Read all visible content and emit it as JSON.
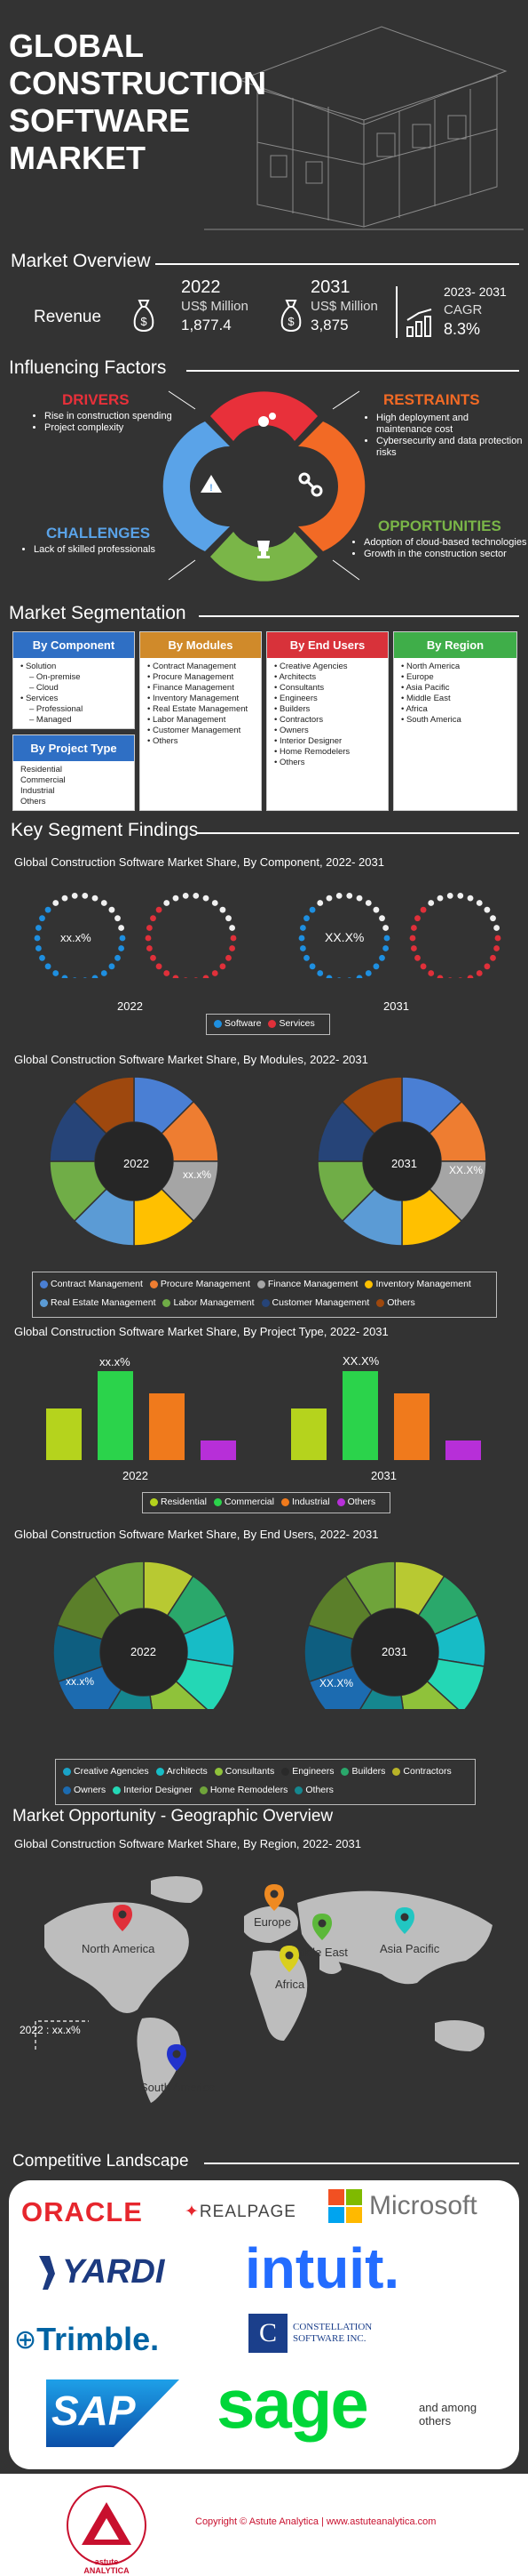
{
  "header": {
    "title_lines": [
      "GLOBAL",
      "CONSTRUCTION",
      "SOFTWARE",
      "MARKET"
    ]
  },
  "overview": {
    "heading": "Market Overview",
    "revenue_label": "Revenue",
    "y2022": {
      "year": "2022",
      "unit": "US$ Million",
      "value": "1,877.4"
    },
    "y2031": {
      "year": "2031",
      "unit": "US$ Million",
      "value": "3,875"
    },
    "cagr": {
      "period": "2023- 2031",
      "label": "CAGR",
      "value": "8.3%"
    }
  },
  "factors": {
    "heading": "Influencing Factors",
    "drivers": {
      "title": "DRIVERS",
      "items": [
        "Rise in construction spending",
        "Project complexity"
      ],
      "color": "#e8303a"
    },
    "restraints": {
      "title": "RESTRAINTS",
      "items": [
        "High deployment and maintenance cost",
        "Cybersecurity and data protection risks"
      ],
      "color": "#f26a25"
    },
    "challenges": {
      "title": "CHALLENGES",
      "items": [
        "Lack of skilled professionals"
      ],
      "color": "#5aa3e8"
    },
    "opportunities": {
      "title": "OPPORTUNITIES",
      "items": [
        "Adoption of cloud-based technologies",
        "Growth in the construction sector"
      ],
      "color": "#7ab648"
    }
  },
  "segmentation": {
    "heading": "Market Segmentation",
    "component": {
      "title": "By Component",
      "color": "#2f6fc4",
      "items": [
        {
          "text": "Solution",
          "level": 0
        },
        {
          "text": "On-premise",
          "level": 1
        },
        {
          "text": "Cloud",
          "level": 1
        },
        {
          "text": "Services",
          "level": 0
        },
        {
          "text": "Professional",
          "level": 1
        },
        {
          "text": "Managed",
          "level": 1
        }
      ]
    },
    "project_type": {
      "title": "By Project Type",
      "color": "#2f6fc4",
      "items": [
        "Residential",
        "Commercial",
        "Industrial",
        "Others"
      ]
    },
    "modules": {
      "title": "By Modules",
      "color": "#d08a2a",
      "items": [
        "Contract Management",
        "Procure Management",
        "Finance Management",
        "Inventory Management",
        "Real Estate Management",
        "Labor Management",
        "Customer Management",
        "Others"
      ]
    },
    "end_users": {
      "title": "By End Users",
      "color": "#d8323a",
      "items": [
        "Creative Agencies",
        "Architects",
        "Consultants",
        "Engineers",
        "Builders",
        "Contractors",
        "Owners",
        "Interior Designer",
        "Home Remodelers",
        "Others"
      ]
    },
    "region": {
      "title": "By Region",
      "color": "#3fae49",
      "items": [
        "North America",
        "Europe",
        "Asia Pacific",
        "Middle East",
        "Africa",
        "South America"
      ]
    }
  },
  "findings": {
    "heading": "Key Segment Findings",
    "component_chart": {
      "title": "Global Construction Software Market Share, By Component, 2022- 2031",
      "label_2022": "xx.x%",
      "label_2031": "XX.X%",
      "year_a": "2022",
      "year_b": "2031",
      "legend": [
        {
          "name": "Software",
          "color": "#1e8fe0"
        },
        {
          "name": "Services",
          "color": "#e0303a"
        }
      ]
    },
    "modules_chart": {
      "title": "Global Construction Software Market Share, By Modules,  2022- 2031",
      "label_2022": "xx.x%",
      "label_2031": "XX.X%",
      "year_a": "2022",
      "year_b": "2031",
      "legend": [
        {
          "name": "Contract Management",
          "color": "#4a7fd4"
        },
        {
          "name": "Procure Management",
          "color": "#ee7d31"
        },
        {
          "name": "Finance Management",
          "color": "#a5a5a5"
        },
        {
          "name": "Inventory Management",
          "color": "#ffc000"
        },
        {
          "name": "Real Estate Management",
          "color": "#5b9bd5"
        },
        {
          "name": "Labor Management",
          "color": "#70ad47"
        },
        {
          "name": "Customer Management",
          "color": "#264478"
        },
        {
          "name": "Others",
          "color": "#9e480e"
        }
      ]
    },
    "project_chart": {
      "title": "Global Construction Software Market Share, By Project Type, 2022- 2031",
      "label_2022": "xx.x%",
      "label_2031": "XX.X%",
      "year_a": "2022",
      "year_b": "2031",
      "legend": [
        {
          "name": "Residential",
          "color": "#b5d31d"
        },
        {
          "name": "Commercial",
          "color": "#2bd34b"
        },
        {
          "name": "Industrial",
          "color": "#f07a1c"
        },
        {
          "name": "Others",
          "color": "#b72fd8"
        }
      ]
    },
    "enduser_chart": {
      "title": "Global Construction Software Market Share, By End Users, 2022- 2031",
      "label_2022": "xx.x%",
      "label_2031": "XX.X%",
      "year_a": "2022",
      "year_b": "2031",
      "legend": [
        {
          "name": "Creative Agencies",
          "color": "#1aa3c8"
        },
        {
          "name": "Architects",
          "color": "#17bcc6"
        },
        {
          "name": "Consultants",
          "color": "#8fc23a"
        },
        {
          "name": "Engineers",
          "color": "#2a2a2a"
        },
        {
          "name": "Builders",
          "color": "#2aa86b"
        },
        {
          "name": "Contractors",
          "color": "#b8b328"
        },
        {
          "name": "Owners",
          "color": "#1c6bb0"
        },
        {
          "name": "Interior Designer",
          "color": "#24d7b5"
        },
        {
          "name": "Home Remodelers",
          "color": "#6fa43a"
        },
        {
          "name": "Others",
          "color": "#15878f"
        }
      ]
    }
  },
  "geo": {
    "heading": "Market Opportunity - Geographic Overview",
    "title": "Global Construction Software Market Share, By Region, 2022- 2031",
    "note": "2022 :  xx.x%",
    "regions": [
      {
        "name": "North America",
        "color": "#e0303a"
      },
      {
        "name": "Europe",
        "color": "#ee8a22"
      },
      {
        "name": "Middle East",
        "color": "#5cb83a"
      },
      {
        "name": "Asia Pacific",
        "color": "#22c6c2"
      },
      {
        "name": "Africa",
        "color": "#d9cf1e"
      },
      {
        "name": "South America",
        "color": "#2233cc"
      }
    ]
  },
  "landscape": {
    "heading": "Competitive Landscape",
    "logos": {
      "oracle": "ORACLE",
      "realpage": "REALPAGE",
      "microsoft": "Microsoft",
      "yardi": "YARDI",
      "intuit": "intuit.",
      "trimble": "Trimble.",
      "constellation": "CONSTELLATION SOFTWARE INC.",
      "sap": "SAP",
      "sage": "sage"
    },
    "others": "and among others"
  },
  "footer": {
    "brand": "astute ANALYTICA",
    "copyright": "Copyright © Astute Analytica  |  www.astuteanalytica.com"
  }
}
